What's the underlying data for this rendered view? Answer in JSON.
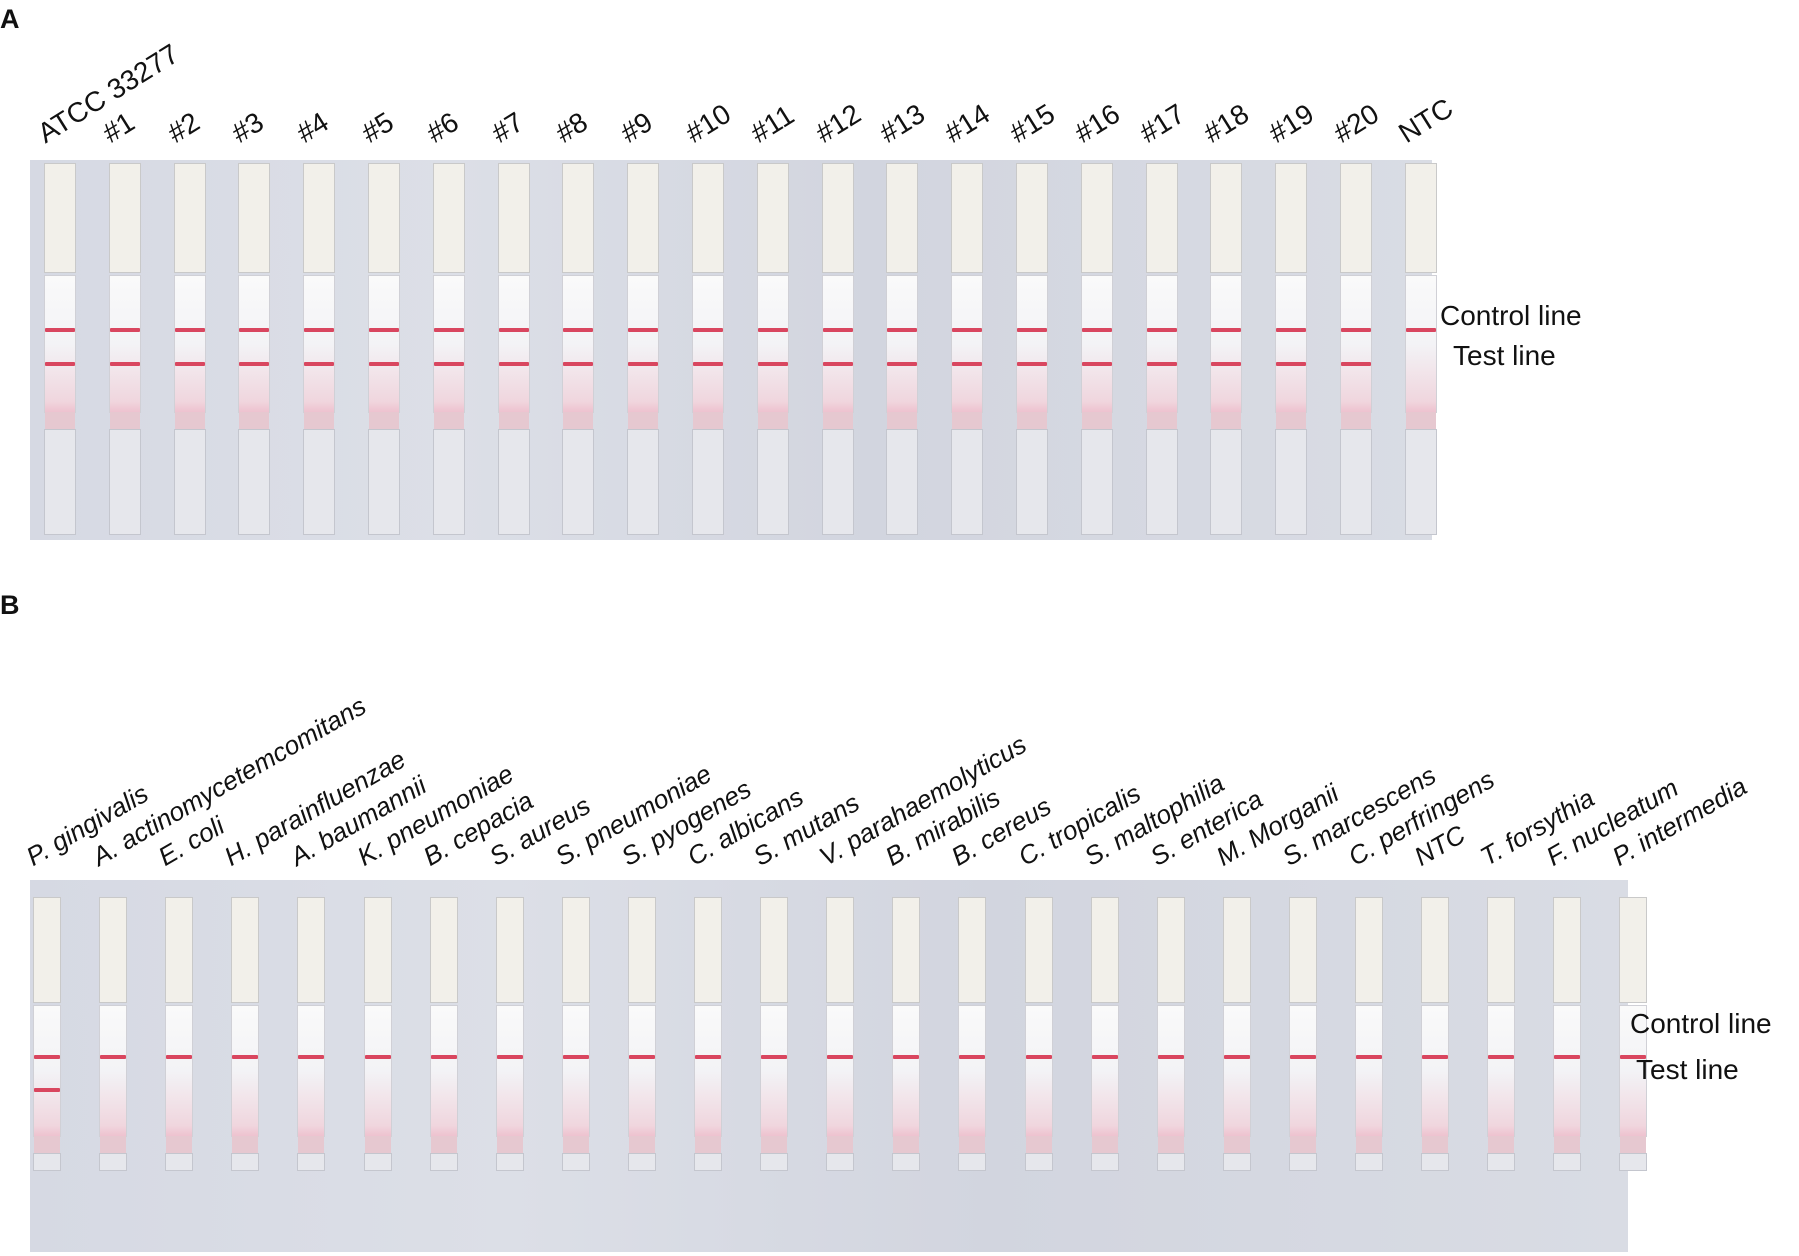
{
  "panel_a": {
    "letter": "A",
    "lanes": [
      {
        "label": "ATCC 33277",
        "test_line": true
      },
      {
        "label": "#1",
        "test_line": true
      },
      {
        "label": "#2",
        "test_line": true
      },
      {
        "label": "#3",
        "test_line": true
      },
      {
        "label": "#4",
        "test_line": true
      },
      {
        "label": "#5",
        "test_line": true
      },
      {
        "label": "#6",
        "test_line": true
      },
      {
        "label": "#7",
        "test_line": true
      },
      {
        "label": "#8",
        "test_line": true
      },
      {
        "label": "#9",
        "test_line": true
      },
      {
        "label": "#10",
        "test_line": true
      },
      {
        "label": "#11",
        "test_line": true
      },
      {
        "label": "#12",
        "test_line": true
      },
      {
        "label": "#13",
        "test_line": true
      },
      {
        "label": "#14",
        "test_line": true
      },
      {
        "label": "#15",
        "test_line": true
      },
      {
        "label": "#16",
        "test_line": true
      },
      {
        "label": "#17",
        "test_line": true
      },
      {
        "label": "#18",
        "test_line": true
      },
      {
        "label": "#19",
        "test_line": true
      },
      {
        "label": "#20",
        "test_line": true
      },
      {
        "label": "NTC",
        "test_line": false
      }
    ],
    "control_line_label": "Control line",
    "test_line_label": "Test line"
  },
  "panel_b": {
    "letter": "B",
    "lanes": [
      {
        "label": "P. gingivalis",
        "test_line": true
      },
      {
        "label": "A. actinomycetemcomitans",
        "test_line": false
      },
      {
        "label": "E. coli",
        "test_line": false
      },
      {
        "label": "H. parainfluenzae",
        "test_line": false
      },
      {
        "label": "A. baumannii",
        "test_line": false
      },
      {
        "label": "K. pneumoniae",
        "test_line": false
      },
      {
        "label": "B. cepacia",
        "test_line": false
      },
      {
        "label": "S. aureus",
        "test_line": false
      },
      {
        "label": "S. pneumoniae",
        "test_line": false
      },
      {
        "label": "S. pyogenes",
        "test_line": false
      },
      {
        "label": "C. albicans",
        "test_line": false
      },
      {
        "label": "S. mutans",
        "test_line": false
      },
      {
        "label": "V. parahaemolyticus",
        "test_line": false
      },
      {
        "label": "B. mirabilis",
        "test_line": false
      },
      {
        "label": "B. cereus",
        "test_line": false
      },
      {
        "label": "C. tropicalis",
        "test_line": false
      },
      {
        "label": "S. maltophilia",
        "test_line": false
      },
      {
        "label": "S. enterica",
        "test_line": false
      },
      {
        "label": "M. Morganii",
        "test_line": false
      },
      {
        "label": "S. marcescens",
        "test_line": false
      },
      {
        "label": "C. perfringens",
        "test_line": false
      },
      {
        "label": "NTC",
        "test_line": false
      },
      {
        "label": "T. forsythia",
        "test_line": false
      },
      {
        "label": "F. nucleatum",
        "test_line": false
      },
      {
        "label": "P. intermedia",
        "test_line": false
      }
    ],
    "control_line_label": "Control line",
    "test_line_label": "Test line"
  },
  "colors": {
    "band": "#d9465f",
    "background": "#d8dbe4"
  }
}
